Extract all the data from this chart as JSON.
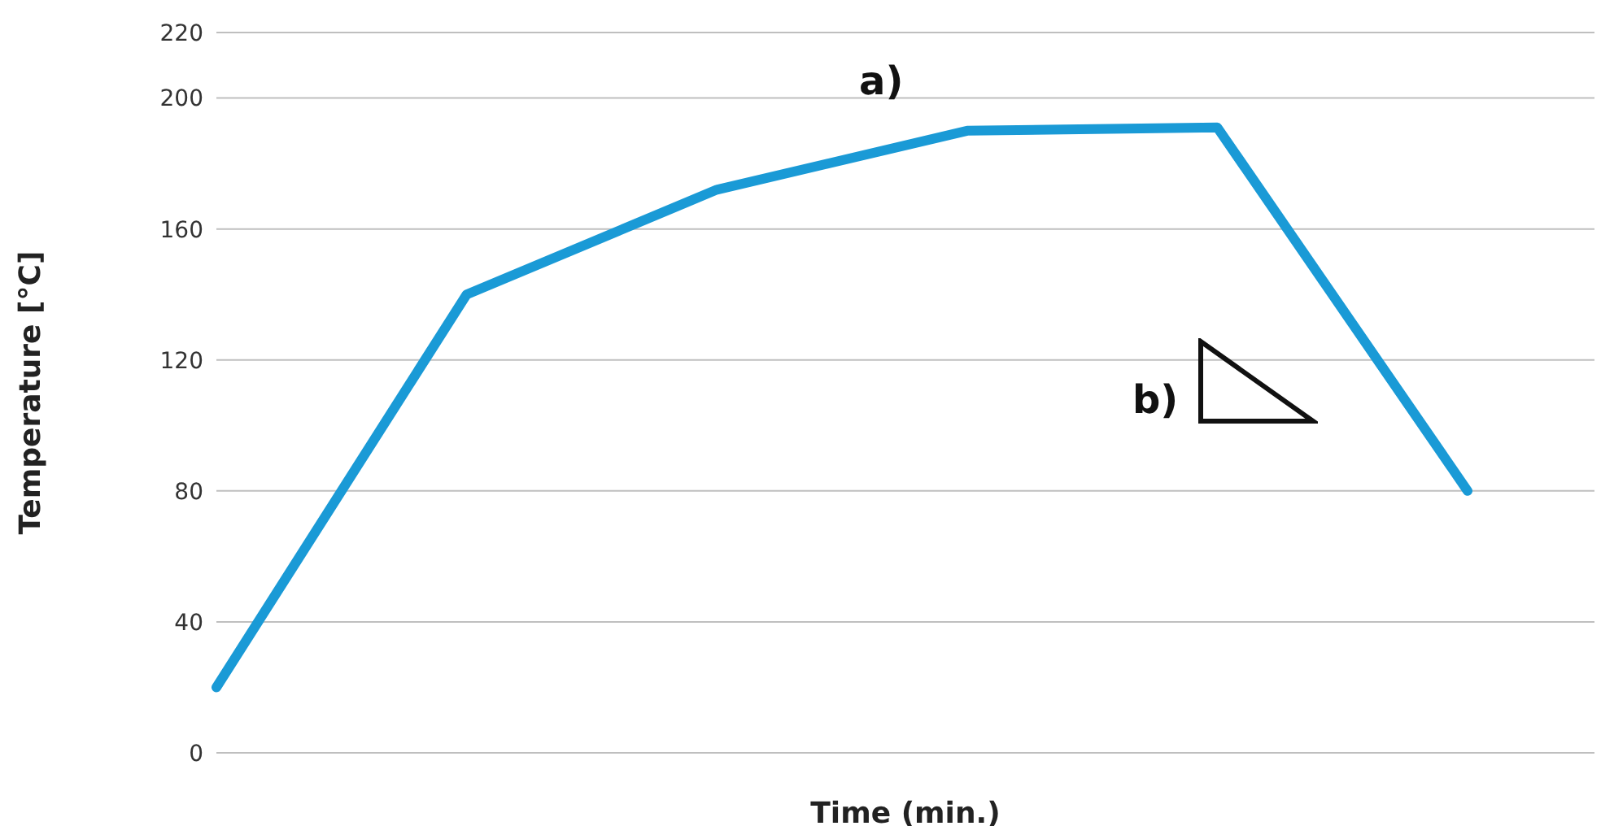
{
  "chart_data": {
    "type": "line",
    "xlabel": "Time (min.)",
    "ylabel": "Temperature [°C]",
    "categories": [
      null,
      null,
      null,
      null,
      null,
      null
    ],
    "series": [
      {
        "color": "#1a9ad6",
        "values": [
          20,
          140,
          172,
          190,
          191,
          80
        ]
      }
    ],
    "ylim": [
      0,
      220
    ],
    "yticks": [
      0,
      40,
      80,
      120,
      160,
      200,
      220
    ],
    "tick_labels": "y",
    "grid": "y",
    "marker": "none",
    "line_style": "solid",
    "annotations": [
      "a)",
      "b)"
    ]
  }
}
